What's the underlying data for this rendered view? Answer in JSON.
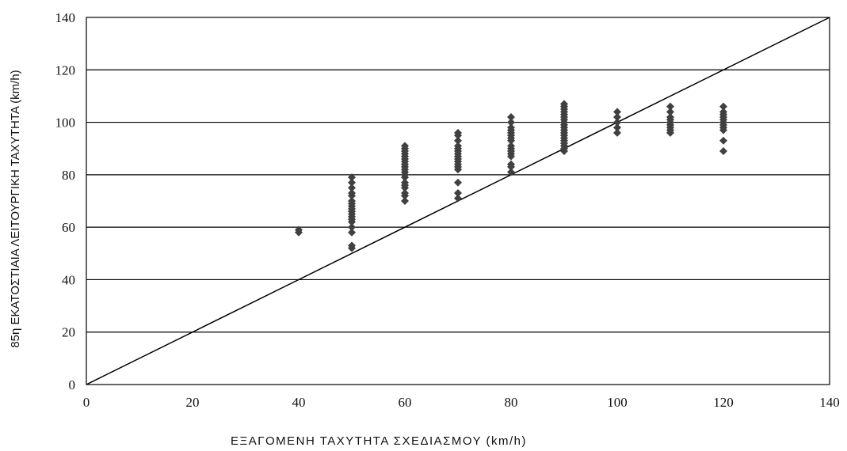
{
  "chart_data": {
    "type": "scatter",
    "xlabel": "ΕΞΑΓΟΜΕΝΗ ΤΑΧΥΤΗΤΑ ΣΧΕΔΙΑΣΜΟΥ (km/h)",
    "ylabel": "85η ΕΚΑΤΟΣΤΙΑΙΑ ΛΕΙΤΟΥΡΓΙΚΗ ΤΑΧΥΤΗΤΑ (km/h)",
    "xlim": [
      0,
      140
    ],
    "ylim": [
      0,
      140
    ],
    "x_ticks": [
      0,
      20,
      40,
      60,
      80,
      100,
      120,
      140
    ],
    "y_ticks": [
      0,
      20,
      40,
      60,
      80,
      100,
      120,
      140
    ],
    "grid": "horizontal",
    "reference_line": {
      "x": [
        0,
        140
      ],
      "y": [
        0,
        140
      ]
    },
    "marker_color": "#404040",
    "series": [
      {
        "points": [
          [
            40,
            58
          ],
          [
            40,
            59
          ],
          [
            50,
            52
          ],
          [
            50,
            53
          ],
          [
            50,
            58
          ],
          [
            50,
            60
          ],
          [
            50,
            62
          ],
          [
            50,
            63
          ],
          [
            50,
            64
          ],
          [
            50,
            65
          ],
          [
            50,
            66
          ],
          [
            50,
            67
          ],
          [
            50,
            68
          ],
          [
            50,
            69
          ],
          [
            50,
            70
          ],
          [
            50,
            72
          ],
          [
            50,
            73
          ],
          [
            50,
            75
          ],
          [
            50,
            77
          ],
          [
            50,
            79
          ],
          [
            60,
            70
          ],
          [
            60,
            72
          ],
          [
            60,
            73
          ],
          [
            60,
            75
          ],
          [
            60,
            76
          ],
          [
            60,
            77
          ],
          [
            60,
            79
          ],
          [
            60,
            80
          ],
          [
            60,
            81
          ],
          [
            60,
            82
          ],
          [
            60,
            83
          ],
          [
            60,
            84
          ],
          [
            60,
            85
          ],
          [
            60,
            86
          ],
          [
            60,
            87
          ],
          [
            60,
            88
          ],
          [
            60,
            89
          ],
          [
            60,
            90
          ],
          [
            60,
            91
          ],
          [
            70,
            71
          ],
          [
            70,
            73
          ],
          [
            70,
            77
          ],
          [
            70,
            82
          ],
          [
            70,
            83
          ],
          [
            70,
            84
          ],
          [
            70,
            85
          ],
          [
            70,
            86
          ],
          [
            70,
            87
          ],
          [
            70,
            88
          ],
          [
            70,
            89
          ],
          [
            70,
            90
          ],
          [
            70,
            91
          ],
          [
            70,
            93
          ],
          [
            70,
            95
          ],
          [
            70,
            96
          ],
          [
            80,
            81
          ],
          [
            80,
            83
          ],
          [
            80,
            84
          ],
          [
            80,
            87
          ],
          [
            80,
            88
          ],
          [
            80,
            89
          ],
          [
            80,
            90
          ],
          [
            80,
            91
          ],
          [
            80,
            93
          ],
          [
            80,
            94
          ],
          [
            80,
            95
          ],
          [
            80,
            96
          ],
          [
            80,
            97
          ],
          [
            80,
            98
          ],
          [
            80,
            100
          ],
          [
            80,
            102
          ],
          [
            90,
            89
          ],
          [
            90,
            90
          ],
          [
            90,
            91
          ],
          [
            90,
            92
          ],
          [
            90,
            93
          ],
          [
            90,
            94
          ],
          [
            90,
            95
          ],
          [
            90,
            96
          ],
          [
            90,
            97
          ],
          [
            90,
            98
          ],
          [
            90,
            99
          ],
          [
            90,
            100
          ],
          [
            90,
            101
          ],
          [
            90,
            102
          ],
          [
            90,
            103
          ],
          [
            90,
            104
          ],
          [
            90,
            105
          ],
          [
            90,
            106
          ],
          [
            90,
            107
          ],
          [
            100,
            96
          ],
          [
            100,
            98
          ],
          [
            100,
            100
          ],
          [
            100,
            102
          ],
          [
            100,
            104
          ],
          [
            110,
            96
          ],
          [
            110,
            97
          ],
          [
            110,
            98
          ],
          [
            110,
            99
          ],
          [
            110,
            100
          ],
          [
            110,
            101
          ],
          [
            110,
            102
          ],
          [
            110,
            104
          ],
          [
            110,
            106
          ],
          [
            120,
            89
          ],
          [
            120,
            93
          ],
          [
            120,
            97
          ],
          [
            120,
            98
          ],
          [
            120,
            99
          ],
          [
            120,
            100
          ],
          [
            120,
            101
          ],
          [
            120,
            102
          ],
          [
            120,
            103
          ],
          [
            120,
            104
          ],
          [
            120,
            106
          ]
        ]
      }
    ]
  }
}
